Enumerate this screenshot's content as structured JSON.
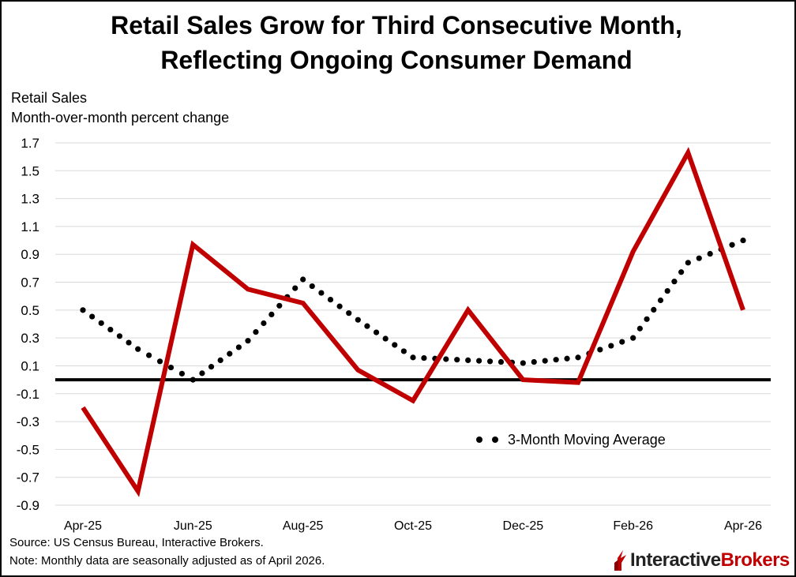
{
  "title_line1": "Retail Sales Grow for Third Consecutive Month,",
  "title_line2": "Reflecting Ongoing Consumer Demand",
  "unit_line1": "Retail Sales",
  "unit_line2": "Month-over-month percent change",
  "source": "Source: US Census Bureau, Interactive Brokers.",
  "note": "Note: Monthly data are seasonally adjusted as of April 2026.",
  "logo": {
    "part1": "Interactive",
    "part2": "Brokers"
  },
  "colors": {
    "sales": "#c00000",
    "average": "#000000",
    "zero_line": "#000000",
    "grid": "#d9d9d9"
  },
  "chart_data": {
    "type": "line",
    "x": [
      "Apr-25",
      "May-25",
      "Jun-25",
      "Jul-25",
      "Aug-25",
      "Sep-25",
      "Oct-25",
      "Nov-25",
      "Dec-25",
      "Jan-26",
      "Feb-26",
      "Mar-26",
      "Apr-26"
    ],
    "x_tick_labels": [
      "Apr-25",
      "Jun-25",
      "Aug-25",
      "Oct-25",
      "Dec-25",
      "Feb-26",
      "Apr-26"
    ],
    "y_tick_labels": [
      "1.7",
      "1.5",
      "1.3",
      "1.1",
      "0.9",
      "0.7",
      "0.5",
      "0.3",
      "0.1",
      "-0.1",
      "-0.3",
      "-0.5",
      "-0.7",
      "-0.9"
    ],
    "ylim": [
      -0.9,
      1.7
    ],
    "grid": true,
    "series": [
      {
        "name": "",
        "style": "solid",
        "values": [
          -0.2,
          -0.8,
          0.97,
          0.65,
          0.55,
          0.07,
          -0.15,
          0.5,
          0.0,
          -0.02,
          0.92,
          1.63,
          0.5
        ]
      },
      {
        "name": "3-Month Moving Average",
        "style": "dotted",
        "values": [
          0.5,
          0.22,
          0.0,
          0.28,
          0.72,
          0.43,
          0.16,
          0.14,
          0.12,
          0.16,
          0.3,
          0.84,
          1.0
        ]
      }
    ],
    "legend": {
      "position": "lower-right",
      "label": "3-Month Moving Average"
    }
  }
}
